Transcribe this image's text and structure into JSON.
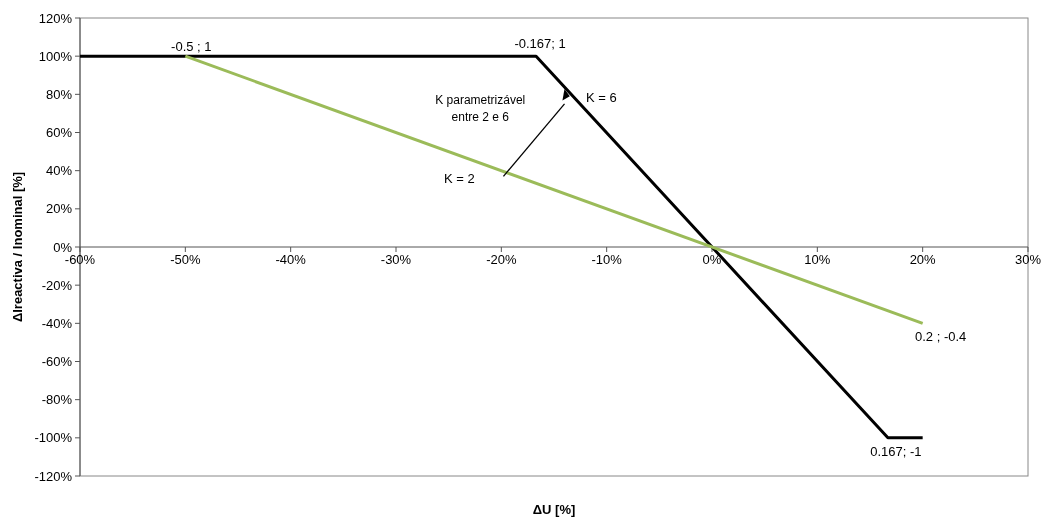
{
  "chart_data": {
    "type": "line",
    "xlabel": "ΔU  [%]",
    "ylabel": "ΔIreactiva / Inominal [%]",
    "series": [
      {
        "color": "#000000",
        "x": [
          -60,
          -16.7,
          16.7,
          20
        ],
        "values": [
          100,
          100,
          -100,
          -100
        ]
      },
      {
        "color": "#9bbb59",
        "x": [
          -50,
          20
        ],
        "values": [
          100,
          -40
        ]
      }
    ],
    "xlim": [
      -60,
      30
    ],
    "xticks": [
      {
        "value": -60,
        "label": "-60%"
      },
      {
        "value": -50,
        "label": "-50%"
      },
      {
        "value": -40,
        "label": "-40%"
      },
      {
        "value": -30,
        "label": "-30%"
      },
      {
        "value": -20,
        "label": "-20%"
      },
      {
        "value": -10,
        "label": "-10%"
      },
      {
        "value": 0,
        "label": "0%"
      },
      {
        "value": 10,
        "label": "10%"
      },
      {
        "value": 20,
        "label": "20%"
      },
      {
        "value": 30,
        "label": "30%"
      }
    ],
    "ylim": [
      -120,
      120
    ],
    "yticks": [
      {
        "value": -120,
        "label": "-120%"
      },
      {
        "value": -100,
        "label": "-100%"
      },
      {
        "value": -80,
        "label": "-80%"
      },
      {
        "value": -60,
        "label": "-60%"
      },
      {
        "value": -40,
        "label": "-40%"
      },
      {
        "value": -20,
        "label": "-20%"
      },
      {
        "value": 0,
        "label": "0%"
      },
      {
        "value": 20,
        "label": "20%"
      },
      {
        "value": 40,
        "label": "40%"
      },
      {
        "value": 60,
        "label": "60%"
      },
      {
        "value": 80,
        "label": "80%"
      },
      {
        "value": 100,
        "label": "100%"
      },
      {
        "value": 120,
        "label": "120%"
      }
    ],
    "grid": false,
    "marker": "none",
    "line_style": "solid",
    "annotations": [
      {
        "text": "-0.5 ; 1",
        "x": -50,
        "y": 100
      },
      {
        "text": "-0.167; 1",
        "x": -16.7,
        "y": 100
      },
      {
        "text": "0.2 ; -0.4",
        "x": 20,
        "y": -40
      },
      {
        "text": "0.167; -1",
        "x": 16.7,
        "y": -100
      },
      {
        "text": "K = 6",
        "x": -13.3,
        "y": 80
      },
      {
        "text": "K = 2",
        "x": -21,
        "y": 42
      },
      "K parametrizável entre 2 e 6"
    ]
  }
}
